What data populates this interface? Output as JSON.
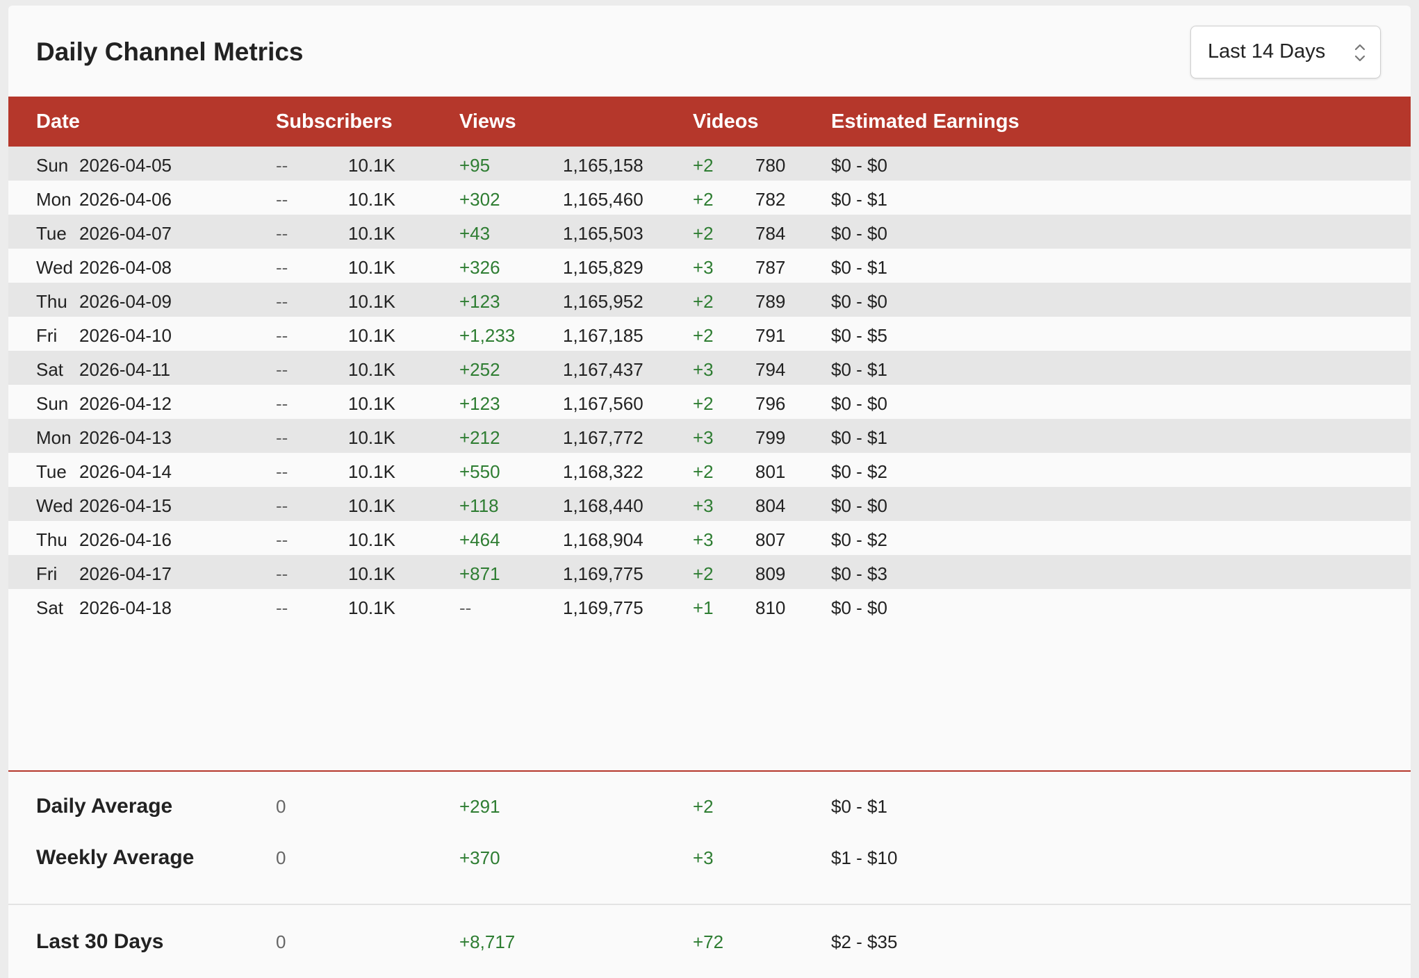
{
  "header": {
    "title": "Daily Channel Metrics",
    "range_select": "Last 14 Days"
  },
  "columns": [
    "Date",
    "Subscribers",
    "Views",
    "Videos",
    "Estimated Earnings"
  ],
  "rows": [
    {
      "day": "Sun",
      "date": "2026-04-05",
      "sub_change": "--",
      "subs": "10.1K",
      "view_change": "+95",
      "views": "1,165,158",
      "video_change": "+2",
      "videos": "780",
      "earnings": "$0 - $0"
    },
    {
      "day": "Mon",
      "date": "2026-04-06",
      "sub_change": "--",
      "subs": "10.1K",
      "view_change": "+302",
      "views": "1,165,460",
      "video_change": "+2",
      "videos": "782",
      "earnings": "$0 - $1"
    },
    {
      "day": "Tue",
      "date": "2026-04-07",
      "sub_change": "--",
      "subs": "10.1K",
      "view_change": "+43",
      "views": "1,165,503",
      "video_change": "+2",
      "videos": "784",
      "earnings": "$0 - $0"
    },
    {
      "day": "Wed",
      "date": "2026-04-08",
      "sub_change": "--",
      "subs": "10.1K",
      "view_change": "+326",
      "views": "1,165,829",
      "video_change": "+3",
      "videos": "787",
      "earnings": "$0 - $1"
    },
    {
      "day": "Thu",
      "date": "2026-04-09",
      "sub_change": "--",
      "subs": "10.1K",
      "view_change": "+123",
      "views": "1,165,952",
      "video_change": "+2",
      "videos": "789",
      "earnings": "$0 - $0"
    },
    {
      "day": "Fri",
      "date": "2026-04-10",
      "sub_change": "--",
      "subs": "10.1K",
      "view_change": "+1,233",
      "views": "1,167,185",
      "video_change": "+2",
      "videos": "791",
      "earnings": "$0 - $5"
    },
    {
      "day": "Sat",
      "date": "2026-04-11",
      "sub_change": "--",
      "subs": "10.1K",
      "view_change": "+252",
      "views": "1,167,437",
      "video_change": "+3",
      "videos": "794",
      "earnings": "$0 - $1"
    },
    {
      "day": "Sun",
      "date": "2026-04-12",
      "sub_change": "--",
      "subs": "10.1K",
      "view_change": "+123",
      "views": "1,167,560",
      "video_change": "+2",
      "videos": "796",
      "earnings": "$0 - $0"
    },
    {
      "day": "Mon",
      "date": "2026-04-13",
      "sub_change": "--",
      "subs": "10.1K",
      "view_change": "+212",
      "views": "1,167,772",
      "video_change": "+3",
      "videos": "799",
      "earnings": "$0 - $1"
    },
    {
      "day": "Tue",
      "date": "2026-04-14",
      "sub_change": "--",
      "subs": "10.1K",
      "view_change": "+550",
      "views": "1,168,322",
      "video_change": "+2",
      "videos": "801",
      "earnings": "$0 - $2"
    },
    {
      "day": "Wed",
      "date": "2026-04-15",
      "sub_change": "--",
      "subs": "10.1K",
      "view_change": "+118",
      "views": "1,168,440",
      "video_change": "+3",
      "videos": "804",
      "earnings": "$0 - $0"
    },
    {
      "day": "Thu",
      "date": "2026-04-16",
      "sub_change": "--",
      "subs": "10.1K",
      "view_change": "+464",
      "views": "1,168,904",
      "video_change": "+3",
      "videos": "807",
      "earnings": "$0 - $2"
    },
    {
      "day": "Fri",
      "date": "2026-04-17",
      "sub_change": "--",
      "subs": "10.1K",
      "view_change": "+871",
      "views": "1,169,775",
      "video_change": "+2",
      "videos": "809",
      "earnings": "$0 - $3"
    },
    {
      "day": "Sat",
      "date": "2026-04-18",
      "sub_change": "--",
      "subs": "10.1K",
      "view_change": "--",
      "views": "1,169,775",
      "video_change": "+1",
      "videos": "810",
      "earnings": "$0 - $0"
    }
  ],
  "summary": [
    {
      "label": "Daily Average",
      "subs": "0",
      "views": "+291",
      "videos": "+2",
      "earnings": "$0 - $1"
    },
    {
      "label": "Weekly Average",
      "subs": "0",
      "views": "+370",
      "videos": "+3",
      "earnings": "$1 - $10"
    },
    {
      "label": "Last 30 Days",
      "subs": "0",
      "views": "+8,717",
      "videos": "+72",
      "earnings": "$2 - $35"
    }
  ],
  "colors": {
    "header_bg": "#b5372b",
    "positive": "#2e7d32",
    "row_alt": "#e6e6e6"
  }
}
